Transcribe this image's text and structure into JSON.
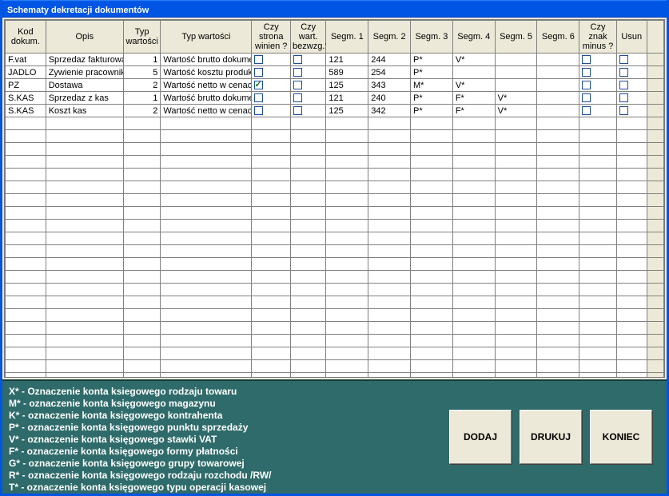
{
  "window": {
    "title": "Schematy dekretacji dokumentów"
  },
  "table": {
    "columns": [
      {
        "key": "kod",
        "label": "Kod\ndokum.",
        "w": "c0",
        "type": "text"
      },
      {
        "key": "opis",
        "label": "Opis",
        "w": "c1",
        "type": "text"
      },
      {
        "key": "typw",
        "label": "Typ\nwartości",
        "w": "c2",
        "type": "num"
      },
      {
        "key": "typwl",
        "label": "Typ wartości",
        "w": "c3",
        "type": "text"
      },
      {
        "key": "winien",
        "label": "Czy strona\nwinien ?",
        "w": "c4",
        "type": "chk"
      },
      {
        "key": "bezwzg",
        "label": "Czy wart.\nbezwzg.?",
        "w": "c5",
        "type": "chk"
      },
      {
        "key": "s1",
        "label": "Segm. 1",
        "w": "c6",
        "type": "text"
      },
      {
        "key": "s2",
        "label": "Segm. 2",
        "w": "c7",
        "type": "text"
      },
      {
        "key": "s3",
        "label": "Segm. 3",
        "w": "c8",
        "type": "text"
      },
      {
        "key": "s4",
        "label": "Segm. 4",
        "w": "c9",
        "type": "text"
      },
      {
        "key": "s5",
        "label": "Segm. 5",
        "w": "c10",
        "type": "text"
      },
      {
        "key": "s6",
        "label": "Segm. 6",
        "w": "c11",
        "type": "text"
      },
      {
        "key": "minus",
        "label": "Czy znak\nminus ?",
        "w": "c12",
        "type": "chk"
      },
      {
        "key": "usun",
        "label": "Usun",
        "w": "c13",
        "type": "chk"
      }
    ],
    "rows": [
      {
        "kod": "F.vat",
        "opis": "Sprzedaz fakturowana",
        "typw": "1",
        "typwl": "Wartość brutto dokumentu",
        "winien": false,
        "bezwzg": false,
        "s1": "121",
        "s2": "244",
        "s3": "P*",
        "s4": "V*",
        "s5": "",
        "s6": "",
        "minus": false,
        "usun": false
      },
      {
        "kod": "JADLO",
        "opis": "Zywienie pracownikow",
        "typw": "5",
        "typwl": "Wartość kosztu produkcji",
        "winien": false,
        "bezwzg": false,
        "s1": "589",
        "s2": "254",
        "s3": "P*",
        "s4": "",
        "s5": "",
        "s6": "",
        "minus": false,
        "usun": false
      },
      {
        "kod": "PZ",
        "opis": "Dostawa",
        "typw": "2",
        "typwl": "Wartość netto w cenach zaku",
        "winien": true,
        "bezwzg": false,
        "s1": "125",
        "s2": "343",
        "s3": "M*",
        "s4": "V*",
        "s5": "",
        "s6": "",
        "minus": false,
        "usun": false
      },
      {
        "kod": "S.KAS",
        "opis": "Sprzedaz z kas",
        "typw": "1",
        "typwl": "Wartość brutto dokumentu",
        "winien": false,
        "bezwzg": false,
        "s1": "121",
        "s2": "240",
        "s3": "P*",
        "s4": "F*",
        "s5": "V*",
        "s6": "",
        "minus": false,
        "usun": false
      },
      {
        "kod": "S.KAS",
        "opis": "Koszt kas",
        "typw": "2",
        "typwl": "Wartość netto w cenach zaku",
        "winien": false,
        "bezwzg": false,
        "s1": "125",
        "s2": "342",
        "s3": "P*",
        "s4": "F*",
        "s5": "V*",
        "s6": "",
        "minus": false,
        "usun": false
      }
    ],
    "empty_row_count": 27
  },
  "legend": [
    "X* - Oznaczenie konta ksiegowego rodzaju towaru",
    "M* - oznaczenie konta księgowego magazynu",
    "K* - oznaczenie konta księgowego kontrahenta",
    "P* - oznaczenie konta księgowego punktu sprzedaży",
    "V* - oznaczenie konta księgowego stawki VAT",
    "F* - oznaczenie konta księgowego formy płatności",
    "G* - oznaczenie konta księgowego grupy towarowej",
    "R* - oznaczenie konta księgowego rodzaju rozchodu /RW/",
    "T* - oznaczenie konta księgowego typu operacji kasowej"
  ],
  "buttons": {
    "add": "DODAJ",
    "print": "DRUKUJ",
    "close": "KONIEC"
  },
  "colors": {
    "titlebar": "#0055e5",
    "footer_bg": "#2f6b6b",
    "header_bg": "#ece9d8",
    "grid_border": "#808080"
  }
}
